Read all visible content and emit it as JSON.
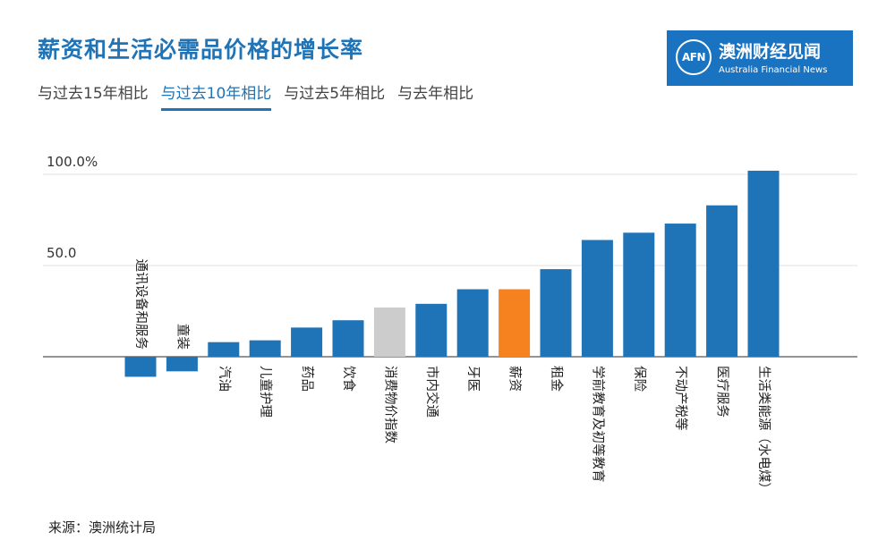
{
  "title": "薪资和生活必需品价格的增长率",
  "tabs": [
    {
      "label": "与过去15年相比",
      "active": false
    },
    {
      "label": "与过去10年相比",
      "active": true
    },
    {
      "label": "与过去5年相比",
      "active": false
    },
    {
      "label": "与去年相比",
      "active": false
    }
  ],
  "logo": {
    "mark": "AFN",
    "name": "澳洲财经见闻",
    "subtitle": "Australia Financial News",
    "background": "#1a73c0"
  },
  "source": "来源：澳洲统计局",
  "chart_data": {
    "type": "bar",
    "title": "",
    "xlabel": "",
    "ylabel": "",
    "ylim": [
      -13,
      110
    ],
    "ytick_labels": [
      {
        "value": 100,
        "label": "100.0%"
      },
      {
        "value": 50,
        "label": "50.0"
      }
    ],
    "grid": true,
    "colors": {
      "default": "#1f73b7",
      "cpi": "#cccccc",
      "wages": "#f5821f"
    },
    "categories": [
      "通讯设备和服务",
      "童装",
      "汽油",
      "儿童护理",
      "药品",
      "饮食",
      "消费物价指数",
      "市内交通",
      "牙医",
      "薪资",
      "租金",
      "学前教育及初等教育",
      "保险",
      "不动产税等",
      "医疗服务",
      "生活类能源（水电煤）"
    ],
    "values": [
      -11,
      -8,
      8,
      9,
      16,
      20,
      27,
      29,
      37,
      37,
      48,
      64,
      68,
      73,
      83,
      102
    ],
    "bar_colors": [
      "default",
      "default",
      "default",
      "default",
      "default",
      "default",
      "cpi",
      "default",
      "default",
      "wages",
      "default",
      "default",
      "default",
      "default",
      "default",
      "default"
    ]
  }
}
